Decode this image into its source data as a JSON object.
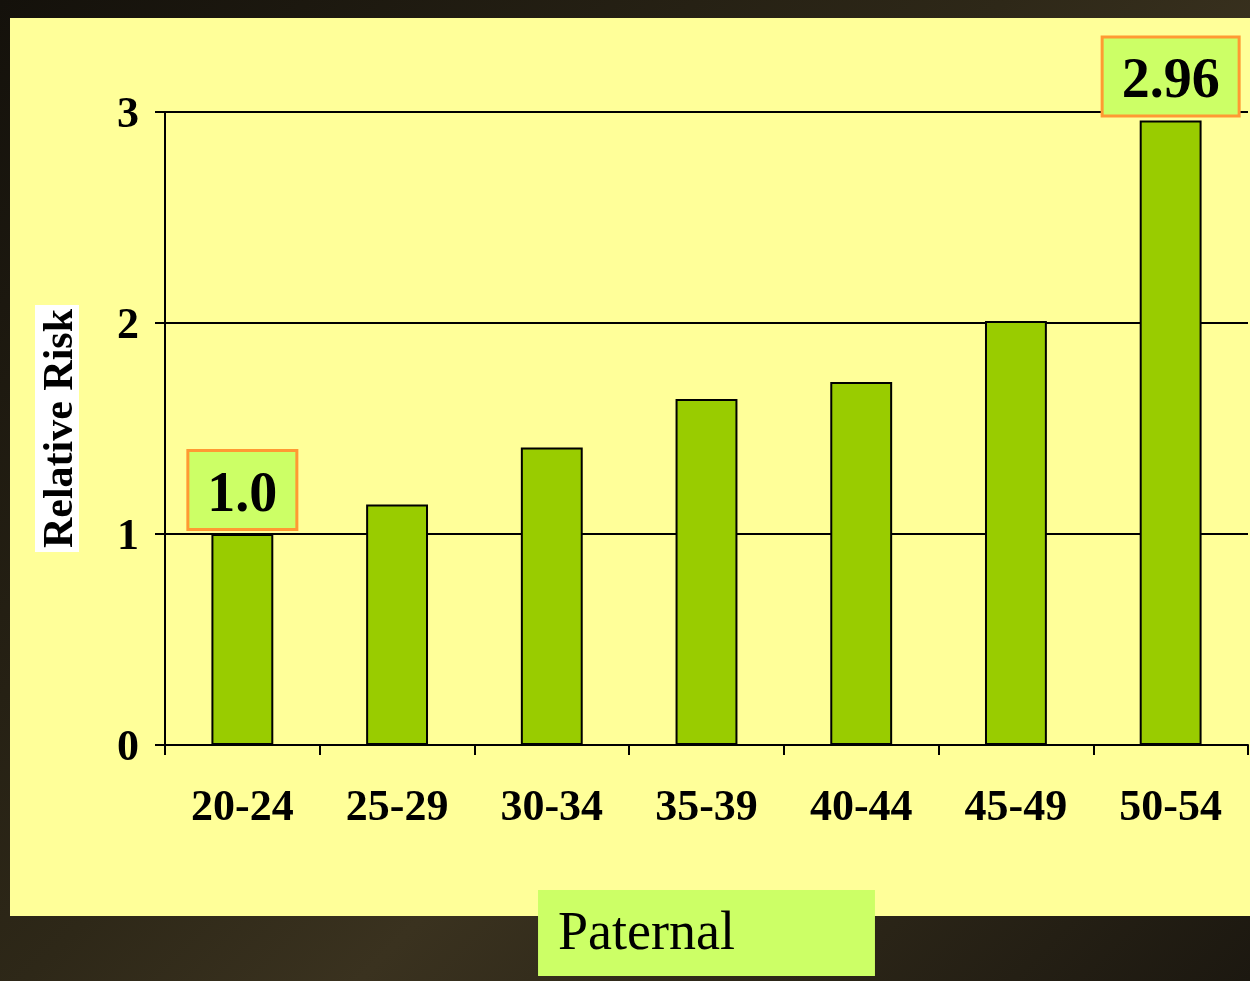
{
  "chart_data": {
    "type": "bar",
    "xlabel": "Paternal",
    "ylabel": "Relative Risk",
    "categories": [
      "20-24",
      "25-29",
      "30-34",
      "35-39",
      "40-44",
      "45-49",
      "50-54"
    ],
    "values": [
      1.0,
      1.14,
      1.41,
      1.64,
      1.72,
      2.01,
      2.96
    ],
    "value_labels": [
      "1.0",
      null,
      null,
      null,
      null,
      null,
      "2.96"
    ],
    "color": "#99cc00",
    "ylim": [
      0,
      3
    ],
    "yticks": [
      0,
      1,
      2,
      3
    ],
    "grid": "y"
  }
}
